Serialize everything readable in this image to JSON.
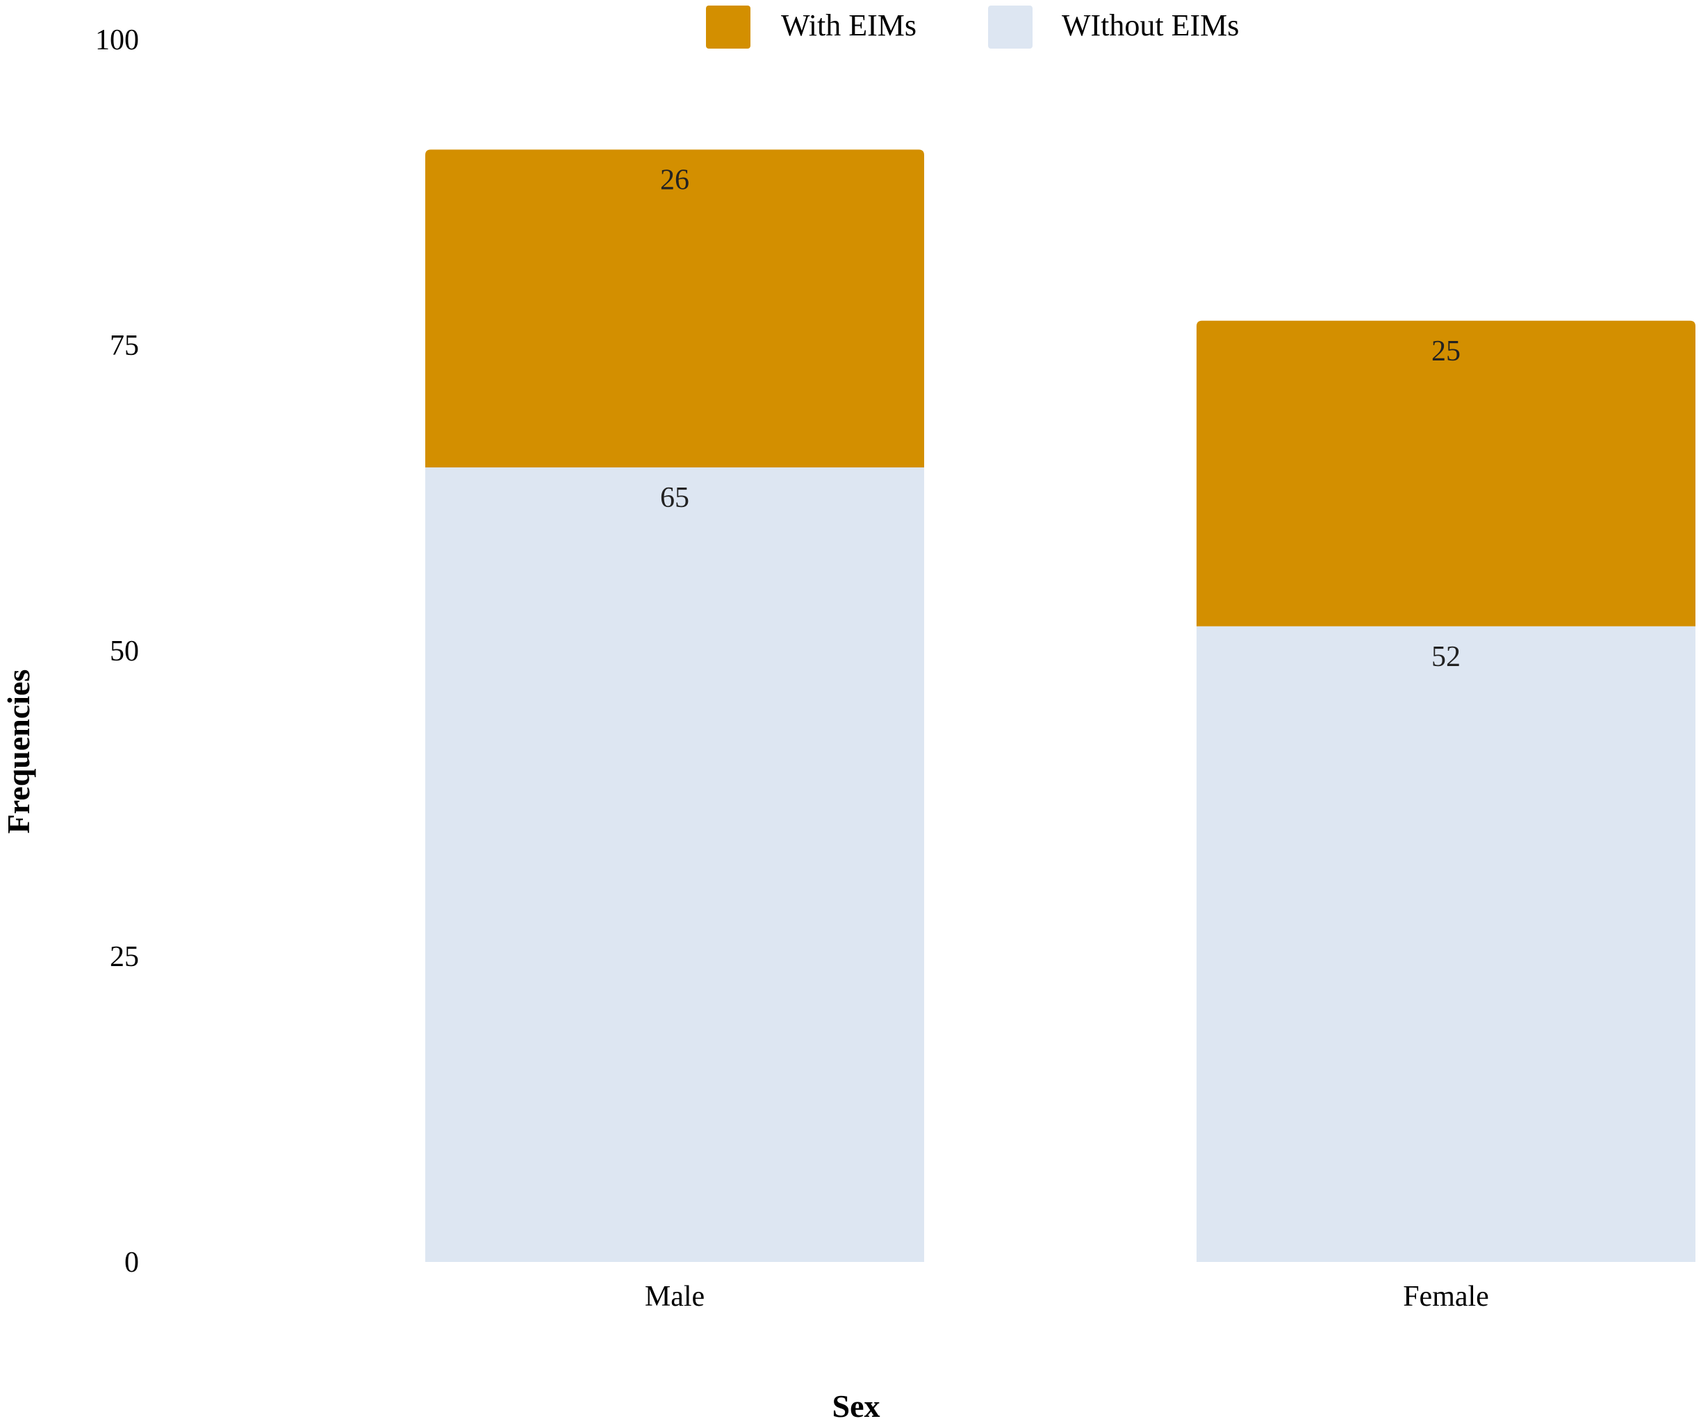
{
  "chart_data": {
    "type": "bar",
    "stacked": true,
    "categories": [
      "Male",
      "Female"
    ],
    "series": [
      {
        "name": "WIthout EIMs",
        "values": [
          65,
          52
        ],
        "color": "#dde6f2"
      },
      {
        "name": "With EIMs",
        "values": [
          26,
          25
        ],
        "color": "#d38f00"
      }
    ],
    "legend_order": [
      "With EIMs",
      "WIthout EIMs"
    ],
    "legend_position": "top",
    "xlabel": "Sex",
    "ylabel": "Frequencies",
    "ylim": [
      0,
      100
    ],
    "yticks": [
      "0",
      "25",
      "50",
      "75",
      "100"
    ],
    "grid": false
  }
}
